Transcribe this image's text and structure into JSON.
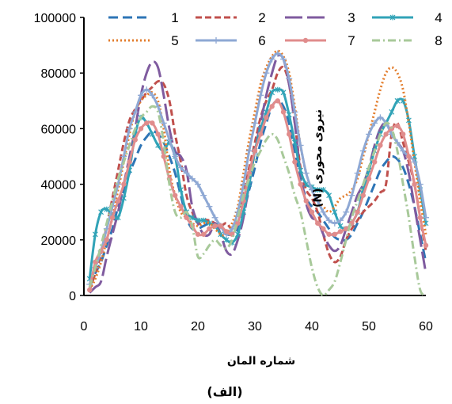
{
  "chart_data": {
    "type": "line",
    "caption": "(الف)",
    "xlabel": "شماره المان",
    "ylabel": "نیروی محوری  (N)",
    "xlim": [
      0,
      60
    ],
    "ylim": [
      0,
      100000
    ],
    "xticks": [
      0,
      10,
      20,
      30,
      40,
      50,
      60
    ],
    "yticks": [
      0,
      20000,
      40000,
      60000,
      80000,
      100000
    ],
    "xtick_labels": [
      "0",
      "10",
      "20",
      "30",
      "40",
      "50",
      "60"
    ],
    "ytick_labels": [
      "0",
      "20000",
      "40000",
      "60000",
      "80000",
      "100000"
    ],
    "grid": false,
    "legend_position": "top",
    "x": [
      1,
      2,
      3,
      4,
      5,
      6,
      7,
      8,
      9,
      10,
      11,
      12,
      13,
      14,
      15,
      16,
      17,
      18,
      19,
      20,
      21,
      22,
      23,
      24,
      25,
      26,
      27,
      28,
      29,
      30,
      31,
      32,
      33,
      34,
      35,
      36,
      37,
      38,
      39,
      40,
      41,
      42,
      43,
      44,
      45,
      46,
      47,
      48,
      49,
      50,
      51,
      52,
      53,
      54,
      55,
      56,
      57,
      58,
      59,
      60
    ],
    "series": [
      {
        "name": "1",
        "color": "#2E75B6",
        "dash": "12,6",
        "marker": "none",
        "values": [
          3000,
          8000,
          12000,
          18000,
          24000,
          32000,
          38000,
          44000,
          49000,
          54000,
          57000,
          59000,
          58000,
          55000,
          50000,
          44000,
          36000,
          28000,
          24000,
          24000,
          25000,
          26000,
          25000,
          23000,
          22000,
          22000,
          24000,
          30000,
          38000,
          46000,
          55000,
          62000,
          68000,
          70000,
          68000,
          62000,
          52000,
          42000,
          35000,
          32000,
          30000,
          27000,
          24000,
          21000,
          20000,
          20000,
          22000,
          26000,
          30000,
          35000,
          40000,
          45000,
          48000,
          50000,
          49000,
          46000,
          40000,
          32000,
          22000,
          12000
        ]
      },
      {
        "name": "2",
        "color": "#C0504D",
        "dash": "8,4",
        "marker": "none",
        "values": [
          2000,
          8000,
          15000,
          25000,
          35000,
          45000,
          55000,
          63000,
          67000,
          70000,
          73000,
          75000,
          77000,
          76000,
          70000,
          58000,
          48000,
          36000,
          30000,
          26000,
          27000,
          27000,
          26000,
          25000,
          26000,
          24000,
          28000,
          36000,
          46000,
          55000,
          64000,
          70000,
          74000,
          80000,
          82000,
          76000,
          62000,
          46000,
          38000,
          35000,
          30000,
          22000,
          15000,
          12000,
          14000,
          20000,
          24000,
          27000,
          30000,
          32000,
          34000,
          37000,
          40000,
          58000,
          62000,
          55000,
          48000,
          40000,
          28000,
          16000
        ]
      },
      {
        "name": "3",
        "color": "#7F5B9F",
        "dash": "22,6",
        "marker": "none",
        "values": [
          1000,
          3000,
          5000,
          14000,
          22000,
          30000,
          40000,
          50000,
          60000,
          72000,
          80000,
          84000,
          82000,
          72000,
          60000,
          52000,
          50000,
          45000,
          32000,
          26000,
          22000,
          22000,
          26000,
          22000,
          16000,
          15000,
          20000,
          28000,
          40000,
          52000,
          62000,
          72000,
          80000,
          86000,
          85000,
          76000,
          62000,
          44000,
          33000,
          28000,
          27000,
          22000,
          18000,
          16000,
          18000,
          24000,
          30000,
          36000,
          40000,
          46000,
          54000,
          60000,
          62000,
          58000,
          55000,
          52000,
          44000,
          32000,
          20000,
          8000
        ]
      },
      {
        "name": "4",
        "color": "#31A3B7",
        "dash": "none",
        "marker": "star",
        "values": [
          6000,
          22000,
          30000,
          31000,
          29000,
          28000,
          35000,
          45000,
          58000,
          64000,
          62000,
          58000,
          54000,
          52000,
          55000,
          50000,
          38000,
          30000,
          28000,
          27000,
          27000,
          26000,
          25000,
          22000,
          20000,
          19000,
          22000,
          30000,
          40000,
          52000,
          60000,
          66000,
          73000,
          74000,
          73000,
          65000,
          55000,
          45000,
          40000,
          39000,
          38000,
          38000,
          36000,
          30000,
          25000,
          24000,
          26000,
          30000,
          38000,
          45000,
          52000,
          58000,
          62000,
          66000,
          70000,
          70000,
          63000,
          50000,
          38000,
          26000
        ]
      },
      {
        "name": "5",
        "color": "#E37D2C",
        "dash": "2,3",
        "marker": "none",
        "values": [
          2000,
          6000,
          12000,
          20000,
          28000,
          38000,
          48000,
          58000,
          66000,
          70000,
          72000,
          73000,
          70000,
          60000,
          45000,
          36000,
          30000,
          28000,
          26000,
          25000,
          26000,
          26000,
          24000,
          22000,
          22000,
          26000,
          32000,
          44000,
          56000,
          66000,
          76000,
          82000,
          86000,
          88000,
          86000,
          80000,
          68000,
          54000,
          44000,
          38000,
          34000,
          32000,
          30000,
          32000,
          35000,
          36000,
          38000,
          42000,
          50000,
          58000,
          66000,
          74000,
          80000,
          82000,
          80000,
          74000,
          62000,
          48000,
          34000,
          22000
        ]
      },
      {
        "name": "6",
        "color": "#8EA8D4",
        "dash": "none",
        "marker": "plus",
        "values": [
          4000,
          10000,
          16000,
          24000,
          32000,
          40000,
          50000,
          60000,
          66000,
          72000,
          74000,
          72000,
          68000,
          62000,
          56000,
          50000,
          46000,
          44000,
          42000,
          40000,
          36000,
          32000,
          28000,
          25000,
          22000,
          24000,
          30000,
          40000,
          52000,
          62000,
          72000,
          80000,
          85000,
          87000,
          85000,
          78000,
          66000,
          54000,
          44000,
          38000,
          34000,
          30000,
          27000,
          26000,
          27000,
          30000,
          36000,
          44000,
          52000,
          58000,
          62000,
          64000,
          62000,
          58000,
          55000,
          52000,
          50000,
          48000,
          40000,
          28000
        ]
      },
      {
        "name": "7",
        "color": "#E08C8C",
        "dash": "none",
        "marker": "circle",
        "values": [
          2000,
          12000,
          16000,
          20000,
          28000,
          34000,
          40000,
          48000,
          56000,
          60000,
          62000,
          62000,
          58000,
          50000,
          42000,
          36000,
          32000,
          28000,
          25000,
          22000,
          22000,
          24000,
          25000,
          25000,
          23000,
          22000,
          26000,
          34000,
          44000,
          52000,
          58000,
          64000,
          68000,
          70000,
          66000,
          58000,
          48000,
          40000,
          34000,
          30000,
          26000,
          24000,
          22000,
          22000,
          23000,
          24000,
          26000,
          30000,
          36000,
          42000,
          48000,
          54000,
          58000,
          60000,
          61000,
          58000,
          50000,
          40000,
          28000,
          18000
        ]
      },
      {
        "name": "8",
        "color": "#A8C99A",
        "dash": "10,4,2,4",
        "marker": "none",
        "values": [
          3000,
          10000,
          18000,
          26000,
          34000,
          42000,
          48000,
          54000,
          60000,
          64000,
          66000,
          68000,
          66000,
          55000,
          40000,
          30000,
          28000,
          30000,
          25000,
          14000,
          15000,
          18000,
          20000,
          18000,
          17000,
          20000,
          28000,
          36000,
          42000,
          48000,
          52000,
          56000,
          58000,
          56000,
          50000,
          44000,
          36000,
          30000,
          20000,
          10000,
          3000,
          0,
          2000,
          5000,
          12000,
          20000,
          28000,
          34000,
          40000,
          46000,
          52000,
          58000,
          62000,
          60000,
          52000,
          40000,
          28000,
          14000,
          2000,
          0
        ]
      }
    ]
  }
}
